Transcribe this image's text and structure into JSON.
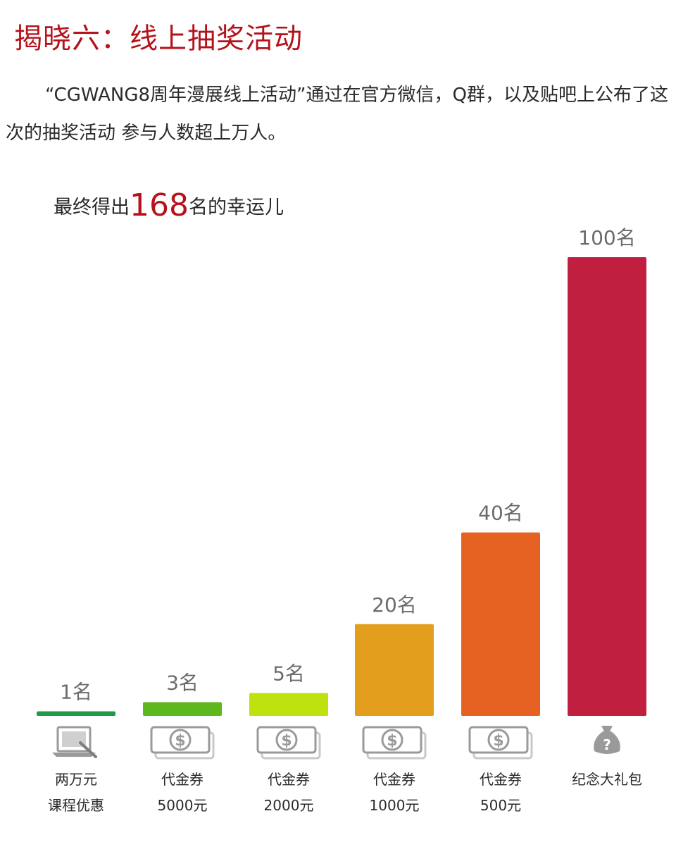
{
  "title": "揭晓六：线上抽奖活动",
  "intro": "“CGWANG8周年漫展线上活动”通过在官方微信，Q群，以及贴吧上公布了这次的抽奖活动  参与人数超上万人。",
  "summary": {
    "prefix": "最终得出",
    "number": "168",
    "suffix": "名的幸运儿"
  },
  "chart_data": {
    "type": "bar",
    "categories": [
      "两万元 课程优惠",
      "代金券 5000元",
      "代金券 2000元",
      "代金券 1000元",
      "代金券 500元",
      "纪念大礼包"
    ],
    "values": [
      1,
      3,
      5,
      20,
      40,
      100
    ],
    "value_labels": [
      "1名",
      "3名",
      "5名",
      "20名",
      "40名",
      "100名"
    ],
    "category_lines": [
      [
        "两万元",
        "课程优惠"
      ],
      [
        "代金券",
        "5000元"
      ],
      [
        "代金券",
        "2000元"
      ],
      [
        "代金券",
        "1000元"
      ],
      [
        "代金券",
        "500元"
      ],
      [
        "纪念大礼包"
      ]
    ],
    "colors": [
      "#1e9a48",
      "#5cb81d",
      "#bde20d",
      "#e29e1c",
      "#e66222",
      "#c01f3f"
    ],
    "icons": [
      "laptop-course-icon",
      "banknote-icon",
      "banknote-icon",
      "banknote-icon",
      "banknote-icon",
      "gift-bag-icon"
    ]
  }
}
